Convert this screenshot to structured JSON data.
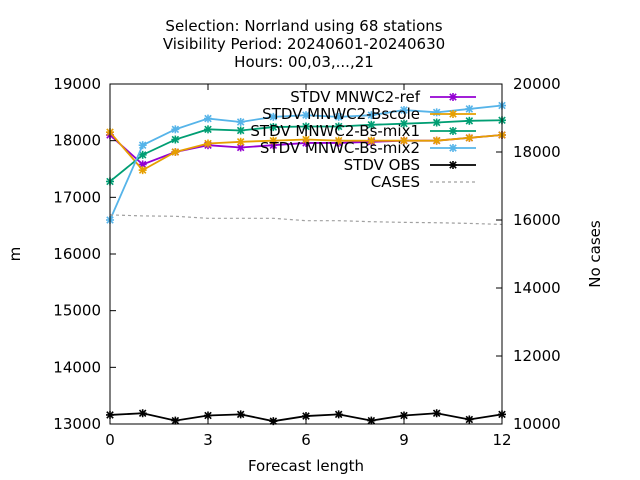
{
  "chart_data": {
    "type": "line",
    "title_lines": [
      "Selection: Norrland using    68 stations",
      "Visibility   Period: 20240601-20240630",
      "Hours: 00,03,...,21"
    ],
    "xlabel": "Forecast length",
    "ylabel": "m",
    "y2label": "No cases",
    "xlim": [
      0,
      12
    ],
    "ylim": [
      13000,
      19000
    ],
    "y2lim": [
      10000,
      20000
    ],
    "x_ticks": [
      0,
      3,
      6,
      9,
      12
    ],
    "y_ticks": [
      13000,
      14000,
      15000,
      16000,
      17000,
      18000,
      19000
    ],
    "y2_ticks": [
      10000,
      12000,
      14000,
      16000,
      18000,
      20000
    ],
    "grid": false,
    "legend_position": "top-right",
    "x": [
      0,
      1,
      2,
      3,
      4,
      5,
      6,
      7,
      8,
      9,
      10,
      11,
      12
    ],
    "series": [
      {
        "name": "STDV MNWC2-ref",
        "color": "#9400d3",
        "axis": "y1",
        "marker": "star",
        "values": [
          18100,
          17580,
          17800,
          17920,
          17880,
          17920,
          17960,
          17960,
          17980,
          18000,
          18000,
          18050,
          18100
        ]
      },
      {
        "name": "STDV MNWC2-Bscole",
        "color": "#e69f00",
        "axis": "y1",
        "marker": "star",
        "values": [
          18150,
          17480,
          17800,
          17950,
          17980,
          18000,
          18020,
          18000,
          18000,
          18000,
          18000,
          18050,
          18100
        ]
      },
      {
        "name": "STDV MNWC2-Bs-mix1",
        "color": "#009e73",
        "axis": "y1",
        "marker": "star",
        "values": [
          17280,
          17750,
          18020,
          18200,
          18180,
          18240,
          18250,
          18250,
          18280,
          18300,
          18320,
          18350,
          18360
        ]
      },
      {
        "name": "STDV MNWC-Bs-mix2",
        "color": "#56b4e9",
        "axis": "y1",
        "marker": "star",
        "values": [
          16600,
          17920,
          18200,
          18390,
          18330,
          18420,
          18450,
          18420,
          18450,
          18540,
          18500,
          18560,
          18620
        ]
      },
      {
        "name": "STDV OBS",
        "color": "#000000",
        "axis": "y1",
        "marker": "star",
        "values": [
          13160,
          13190,
          13060,
          13150,
          13170,
          13050,
          13140,
          13170,
          13060,
          13150,
          13190,
          13080,
          13170
        ]
      },
      {
        "name": "CASES",
        "color": "#a0a0a0",
        "axis": "y2",
        "marker": "none",
        "dashed": true,
        "values": [
          16150,
          16120,
          16110,
          16050,
          16050,
          16050,
          15980,
          15980,
          15950,
          15930,
          15920,
          15900,
          15870
        ]
      }
    ]
  }
}
